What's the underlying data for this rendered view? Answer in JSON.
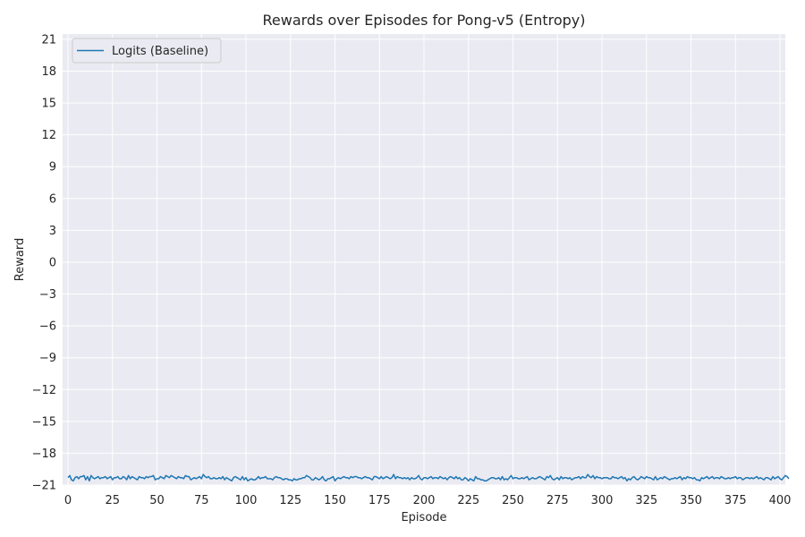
{
  "chart_data": {
    "type": "line",
    "title": "Rewards over Episodes for Pong-v5 (Entropy)",
    "xlabel": "Episode",
    "ylabel": "Reward",
    "xlim": [
      -3,
      403
    ],
    "ylim": [
      -21,
      21.5
    ],
    "xticks": [
      0,
      25,
      50,
      75,
      100,
      125,
      150,
      175,
      200,
      225,
      250,
      275,
      300,
      325,
      350,
      375,
      400
    ],
    "yticks": [
      -21,
      -18,
      -15,
      -12,
      -9,
      -6,
      -3,
      0,
      3,
      6,
      9,
      12,
      15,
      18,
      21
    ],
    "ytick_labels": [
      "−21",
      "−18",
      "−15",
      "−12",
      "−9",
      "−6",
      "−3",
      "0",
      "3",
      "6",
      "9",
      "12",
      "15",
      "18",
      "21"
    ],
    "grid": true,
    "legend_position": "top-left",
    "background_color": "#eaeaf2",
    "grid_color": "#ffffff",
    "series": [
      {
        "name": "Logits (Baseline)",
        "color": "#1f77b4",
        "x_start": 0,
        "x_step": 1,
        "values": [
          -20.3,
          -20.1,
          -20.5,
          -20.6,
          -20.3,
          -20.2,
          -20.4,
          -20.2,
          -20.2,
          -20.1,
          -20.5,
          -20.2,
          -20.6,
          -20.1,
          -20.3,
          -20.4,
          -20.3,
          -20.2,
          -20.4,
          -20.3,
          -20.3,
          -20.2,
          -20.4,
          -20.3,
          -20.2,
          -20.5,
          -20.3,
          -20.3,
          -20.2,
          -20.4,
          -20.4,
          -20.2,
          -20.3,
          -20.5,
          -20.1,
          -20.4,
          -20.2,
          -20.3,
          -20.4,
          -20.5,
          -20.2,
          -20.3,
          -20.3,
          -20.4,
          -20.2,
          -20.3,
          -20.2,
          -20.2,
          -20.1,
          -20.5,
          -20.4,
          -20.4,
          -20.2,
          -20.3,
          -20.4,
          -20.1,
          -20.2,
          -20.3,
          -20.1,
          -20.2,
          -20.3,
          -20.4,
          -20.2,
          -20.3,
          -20.3,
          -20.4,
          -20.1,
          -20.2,
          -20.2,
          -20.5,
          -20.4,
          -20.3,
          -20.4,
          -20.3,
          -20.2,
          -20.4,
          -20.0,
          -20.2,
          -20.3,
          -20.2,
          -20.4,
          -20.4,
          -20.3,
          -20.4,
          -20.4,
          -20.3,
          -20.4,
          -20.2,
          -20.5,
          -20.3,
          -20.4,
          -20.5,
          -20.6,
          -20.3,
          -20.2,
          -20.3,
          -20.4,
          -20.5,
          -20.2,
          -20.5,
          -20.3,
          -20.6,
          -20.5,
          -20.4,
          -20.5,
          -20.5,
          -20.4,
          -20.2,
          -20.4,
          -20.3,
          -20.3,
          -20.2,
          -20.4,
          -20.4,
          -20.4,
          -20.5,
          -20.3,
          -20.2,
          -20.3,
          -20.3,
          -20.4,
          -20.5,
          -20.4,
          -20.4,
          -20.5,
          -20.5,
          -20.6,
          -20.4,
          -20.5,
          -20.5,
          -20.4,
          -20.4,
          -20.3,
          -20.3,
          -20.1,
          -20.2,
          -20.3,
          -20.5,
          -20.5,
          -20.3,
          -20.4,
          -20.5,
          -20.4,
          -20.2,
          -20.5,
          -20.6,
          -20.4,
          -20.4,
          -20.3,
          -20.2,
          -20.6,
          -20.4,
          -20.3,
          -20.4,
          -20.3,
          -20.2,
          -20.3,
          -20.3,
          -20.4,
          -20.2,
          -20.3,
          -20.2,
          -20.2,
          -20.3,
          -20.3,
          -20.4,
          -20.3,
          -20.2,
          -20.3,
          -20.3,
          -20.4,
          -20.5,
          -20.2,
          -20.2,
          -20.3,
          -20.4,
          -20.2,
          -20.4,
          -20.3,
          -20.2,
          -20.3,
          -20.4,
          -20.3,
          -20.0,
          -20.4,
          -20.2,
          -20.3,
          -20.3,
          -20.4,
          -20.3,
          -20.4,
          -20.3,
          -20.5,
          -20.3,
          -20.4,
          -20.4,
          -20.3,
          -20.1,
          -20.4,
          -20.5,
          -20.3,
          -20.3,
          -20.4,
          -20.3,
          -20.2,
          -20.4,
          -20.3,
          -20.3,
          -20.4,
          -20.2,
          -20.3,
          -20.4,
          -20.3,
          -20.5,
          -20.3,
          -20.2,
          -20.3,
          -20.4,
          -20.2,
          -20.4,
          -20.3,
          -20.5,
          -20.5,
          -20.3,
          -20.4,
          -20.6,
          -20.4,
          -20.5,
          -20.6,
          -20.2,
          -20.4,
          -20.4,
          -20.5,
          -20.5,
          -20.6,
          -20.6,
          -20.5,
          -20.4,
          -20.3,
          -20.3,
          -20.4,
          -20.4,
          -20.3,
          -20.5,
          -20.2,
          -20.5,
          -20.4,
          -20.5,
          -20.3,
          -20.1,
          -20.4,
          -20.3,
          -20.3,
          -20.4,
          -20.4,
          -20.3,
          -20.4,
          -20.3,
          -20.2,
          -20.5,
          -20.4,
          -20.3,
          -20.4,
          -20.4,
          -20.3,
          -20.2,
          -20.3,
          -20.4,
          -20.5,
          -20.2,
          -20.3,
          -20.1,
          -20.4,
          -20.5,
          -20.4,
          -20.3,
          -20.5,
          -20.2,
          -20.4,
          -20.3,
          -20.3,
          -20.4,
          -20.3,
          -20.5,
          -20.4,
          -20.3,
          -20.3,
          -20.2,
          -20.4,
          -20.2,
          -20.3,
          -20.3,
          -20.0,
          -20.2,
          -20.3,
          -20.1,
          -20.4,
          -20.2,
          -20.3,
          -20.3,
          -20.4,
          -20.3,
          -20.3,
          -20.3,
          -20.4,
          -20.4,
          -20.2,
          -20.3,
          -20.3,
          -20.4,
          -20.3,
          -20.2,
          -20.4,
          -20.3,
          -20.6,
          -20.4,
          -20.5,
          -20.3,
          -20.2,
          -20.4,
          -20.5,
          -20.4,
          -20.2,
          -20.3,
          -20.4,
          -20.2,
          -20.3,
          -20.3,
          -20.4,
          -20.5,
          -20.2,
          -20.5,
          -20.4,
          -20.3,
          -20.4,
          -20.2,
          -20.3,
          -20.4,
          -20.5,
          -20.4,
          -20.4,
          -20.3,
          -20.4,
          -20.3,
          -20.2,
          -20.5,
          -20.3,
          -20.4,
          -20.2,
          -20.3,
          -20.3,
          -20.4,
          -20.3,
          -20.5,
          -20.5,
          -20.6,
          -20.3,
          -20.4,
          -20.3,
          -20.2,
          -20.4,
          -20.3,
          -20.2,
          -20.4,
          -20.3,
          -20.3,
          -20.4,
          -20.2,
          -20.3,
          -20.4,
          -20.4,
          -20.3,
          -20.4,
          -20.3,
          -20.3,
          -20.2,
          -20.4,
          -20.3,
          -20.3,
          -20.5,
          -20.4,
          -20.3,
          -20.3,
          -20.4,
          -20.3,
          -20.4,
          -20.3,
          -20.2,
          -20.4,
          -20.3,
          -20.4,
          -20.5,
          -20.3,
          -20.3,
          -20.4,
          -20.5,
          -20.2,
          -20.4,
          -20.3,
          -20.2,
          -20.4,
          -20.5,
          -20.3,
          -20.1,
          -20.2,
          -20.4
        ]
      }
    ]
  }
}
